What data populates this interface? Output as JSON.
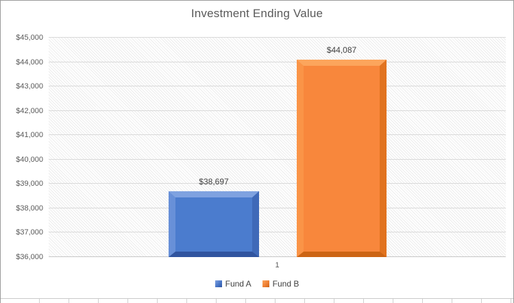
{
  "chart_data": {
    "type": "bar",
    "title": "Investment Ending Value",
    "categories": [
      "1"
    ],
    "series": [
      {
        "name": "Fund A",
        "values": [
          38697
        ],
        "data_label": "$38,697",
        "color": "#4b7cce",
        "bevel": {
          "top": "#7fa2e0",
          "left": "#6890d8",
          "right": "#3f69b8",
          "bottom": "#30549f"
        },
        "legend_color": "#4472c4"
      },
      {
        "name": "Fund B",
        "values": [
          44087
        ],
        "data_label": "$44,087",
        "color": "#f8873c",
        "bevel": {
          "top": "#fca55c",
          "left": "#fa9447",
          "right": "#e1731f",
          "bottom": "#cc6414"
        },
        "legend_color": "#ed7d31"
      }
    ],
    "ylim": [
      36000,
      45000
    ],
    "ytick_step": 1000,
    "yticks": [
      "$36,000",
      "$37,000",
      "$38,000",
      "$39,000",
      "$40,000",
      "$41,000",
      "$42,000",
      "$43,000",
      "$44,000",
      "$45,000"
    ],
    "xlabel": "",
    "ylabel": "",
    "grid": true,
    "legend_position": "bottom",
    "plot_background": "light-diagonal-hatch",
    "colors": {
      "title_text": "#595959",
      "axis_text": "#595959",
      "gridline": "#d9d9d9",
      "data_label_text": "#3f3f3f"
    }
  }
}
